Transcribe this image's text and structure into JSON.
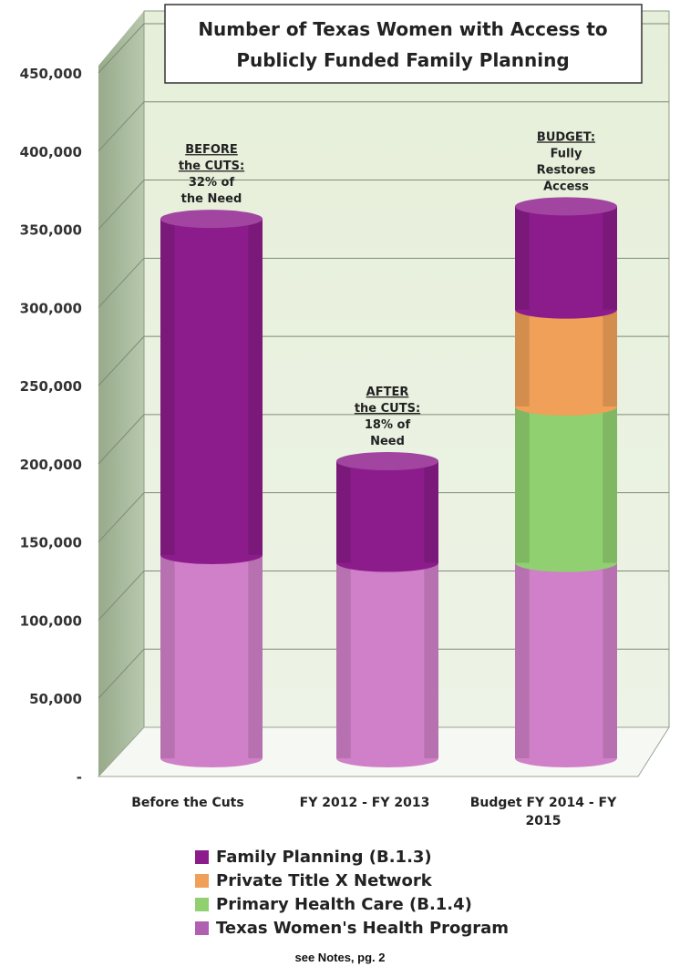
{
  "chart_data": {
    "type": "bar",
    "stacked": true,
    "title_lines": [
      "Number of Texas Women with Access to",
      "Publicly Funded Family Planning"
    ],
    "categories": [
      "Before the Cuts",
      "FY 2012 - FY 2013",
      "Budget FY 2014 - FY 2015"
    ],
    "series": [
      {
        "name": "Texas Women's Health Program",
        "color": "#d080c8",
        "values": [
          130000,
          125000,
          125000
        ]
      },
      {
        "name": "Primary Health Care (B.1.4)",
        "color": "#90d070",
        "values": [
          0,
          0,
          100000
        ]
      },
      {
        "name": "Private Title X Network",
        "color": "#f0a058",
        "values": [
          0,
          0,
          62000
        ]
      },
      {
        "name": "Family Planning (B.1.3)",
        "color": "#8c1c8c",
        "values": [
          215000,
          65000,
          66000
        ]
      }
    ],
    "legend_order": [
      {
        "name": "Family Planning (B.1.3)",
        "color": "#8c1c8c"
      },
      {
        "name": "Private Title X Network",
        "color": "#f0a058"
      },
      {
        "name": "Primary Health Care (B.1.4)",
        "color": "#90d070"
      },
      {
        "name": "Texas Women's Health Program",
        "color": "#b060b0"
      }
    ],
    "ylim": [
      0,
      450000
    ],
    "y_ticks": [
      {
        "value": 0,
        "label": "-"
      },
      {
        "value": 50000,
        "label": "50,000"
      },
      {
        "value": 100000,
        "label": "100,000"
      },
      {
        "value": 150000,
        "label": "150,000"
      },
      {
        "value": 200000,
        "label": "200,000"
      },
      {
        "value": 250000,
        "label": "250,000"
      },
      {
        "value": 300000,
        "label": "300,000"
      },
      {
        "value": 350000,
        "label": "350,000"
      },
      {
        "value": 400000,
        "label": "400,000"
      },
      {
        "value": 450000,
        "label": "450,000"
      }
    ],
    "x_tick_lines": [
      [
        "Before the Cuts"
      ],
      [
        "FY 2012 - FY 2013"
      ],
      [
        "Budget FY 2014 - FY",
        "2015"
      ]
    ],
    "annotations": [
      {
        "bar": 0,
        "lines": [
          "BEFORE",
          "the CUTS:",
          "32% of",
          "the Need"
        ],
        "underlined": 2
      },
      {
        "bar": 1,
        "lines": [
          "AFTER",
          "the CUTS:",
          "18% of",
          "Need"
        ],
        "underlined": 2
      },
      {
        "bar": 2,
        "lines": [
          "BUDGET:",
          "Fully",
          "Restores",
          "Access"
        ],
        "underlined": 1
      }
    ],
    "grid": true,
    "legend_position": "bottom"
  },
  "notes": "see Notes, pg. 2"
}
